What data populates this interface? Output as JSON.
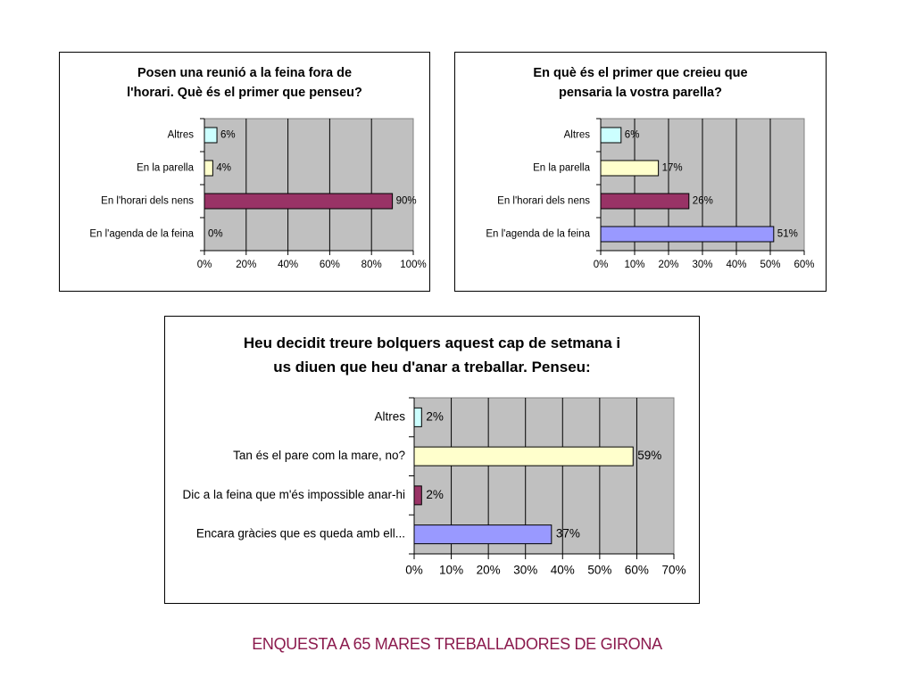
{
  "footer": {
    "title": "ENQUESTA A 65 MARES TREBALLADORES DE GIRONA"
  },
  "colors": {
    "altres": "#ccffff",
    "parella": "#ffffcc",
    "nens": "#993366",
    "agenda": "#9999ff",
    "plot_bg": "#c0c0c0",
    "footer": "#8b1a4d"
  },
  "chart_data": [
    {
      "type": "bar",
      "orientation": "horizontal",
      "title_lines": [
        "Posen una reunió a la feina fora de",
        "l'horari. Què és el primer que penseu?"
      ],
      "categories": [
        "Altres",
        "En la parella",
        "En l'horari dels nens",
        "En l'agenda de la feina"
      ],
      "values": [
        6,
        4,
        90,
        0
      ],
      "value_labels": [
        "6%",
        "4%",
        "90%",
        "0%"
      ],
      "bar_colors": [
        "#ccffff",
        "#ffffcc",
        "#993366",
        "#9999ff"
      ],
      "xlim": [
        0,
        100
      ],
      "x_ticks": [
        0,
        20,
        40,
        60,
        80,
        100
      ],
      "x_tick_labels": [
        "0%",
        "20%",
        "40%",
        "60%",
        "80%",
        "100%"
      ],
      "grid": true
    },
    {
      "type": "bar",
      "orientation": "horizontal",
      "title_lines": [
        "En què és el primer que creieu que",
        "pensaria la vostra parella?"
      ],
      "categories": [
        "Altres",
        "En la parella",
        "En l'horari dels nens",
        "En l'agenda de la feina"
      ],
      "values": [
        6,
        17,
        26,
        51
      ],
      "value_labels": [
        "6%",
        "17%",
        "26%",
        "51%"
      ],
      "bar_colors": [
        "#ccffff",
        "#ffffcc",
        "#993366",
        "#9999ff"
      ],
      "xlim": [
        0,
        60
      ],
      "x_ticks": [
        0,
        10,
        20,
        30,
        40,
        50,
        60
      ],
      "x_tick_labels": [
        "0%",
        "10%",
        "20%",
        "30%",
        "40%",
        "50%",
        "60%"
      ],
      "grid": true
    },
    {
      "type": "bar",
      "orientation": "horizontal",
      "title_lines": [
        "Heu decidit treure bolquers aquest cap de setmana i",
        "us diuen que heu d'anar a treballar. Penseu:"
      ],
      "categories": [
        "Altres",
        "Tan és el pare com la mare, no?",
        "Dic a la feina que m'és impossible anar-hi",
        "Encara gràcies que es queda amb ell..."
      ],
      "values": [
        2,
        59,
        2,
        37
      ],
      "value_labels": [
        "2%",
        "59%",
        "2%",
        "37%"
      ],
      "bar_colors": [
        "#ccffff",
        "#ffffcc",
        "#993366",
        "#9999ff"
      ],
      "xlim": [
        0,
        70
      ],
      "x_ticks": [
        0,
        10,
        20,
        30,
        40,
        50,
        60,
        70
      ],
      "x_tick_labels": [
        "0%",
        "10%",
        "20%",
        "30%",
        "40%",
        "50%",
        "60%",
        "70%"
      ],
      "grid": true
    }
  ]
}
